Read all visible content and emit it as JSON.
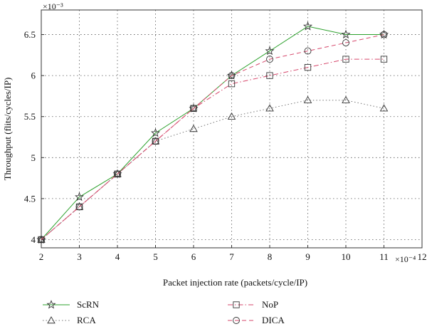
{
  "chart_data": {
    "type": "line",
    "xlabel": "Packet injection rate (packets/cycle/IP)",
    "ylabel": "Throughput (flits/cycles/IP)",
    "x_multiplier": "×10⁻⁴",
    "y_multiplier": "×10⁻³",
    "xlim": [
      2,
      12
    ],
    "ylim": [
      3.9,
      6.8
    ],
    "xticks": [
      2,
      3,
      4,
      5,
      6,
      7,
      8,
      9,
      10,
      11,
      12
    ],
    "yticks": [
      4,
      4.5,
      5,
      5.5,
      6,
      6.5
    ],
    "ytick_labels": [
      "4",
      "4.5",
      "5",
      "5.5",
      "6",
      "6.5"
    ],
    "grid": true,
    "legend_position": "bottom",
    "series": [
      {
        "name": "ScRN",
        "color": "#2ca02c",
        "line_style": "solid",
        "marker": "star",
        "x": [
          2,
          3,
          4,
          5,
          6,
          7,
          8,
          9,
          10,
          11
        ],
        "y": [
          4.0,
          4.52,
          4.8,
          5.3,
          5.6,
          6.0,
          6.3,
          6.6,
          6.5,
          6.5
        ]
      },
      {
        "name": "NoP",
        "color": "#d6476b",
        "line_style": "dashdot",
        "marker": "square",
        "x": [
          2,
          3,
          4,
          5,
          6,
          7,
          8,
          9,
          10,
          11
        ],
        "y": [
          4.0,
          4.4,
          4.8,
          5.2,
          5.6,
          5.9,
          6.0,
          6.1,
          6.2,
          6.2
        ]
      },
      {
        "name": "RCA",
        "color": "#777777",
        "line_style": "dotted",
        "marker": "triangle",
        "x": [
          2,
          3,
          4,
          5,
          6,
          7,
          8,
          9,
          10,
          11
        ],
        "y": [
          4.0,
          4.4,
          4.8,
          5.2,
          5.35,
          5.5,
          5.6,
          5.7,
          5.7,
          5.6
        ]
      },
      {
        "name": "DICA",
        "color": "#d6476b",
        "line_style": "dashed",
        "marker": "circle",
        "x": [
          2,
          3,
          4,
          5,
          6,
          7,
          8,
          9,
          10,
          11
        ],
        "y": [
          4.0,
          4.4,
          4.8,
          5.2,
          5.6,
          6.0,
          6.2,
          6.3,
          6.4,
          6.5
        ]
      }
    ]
  }
}
